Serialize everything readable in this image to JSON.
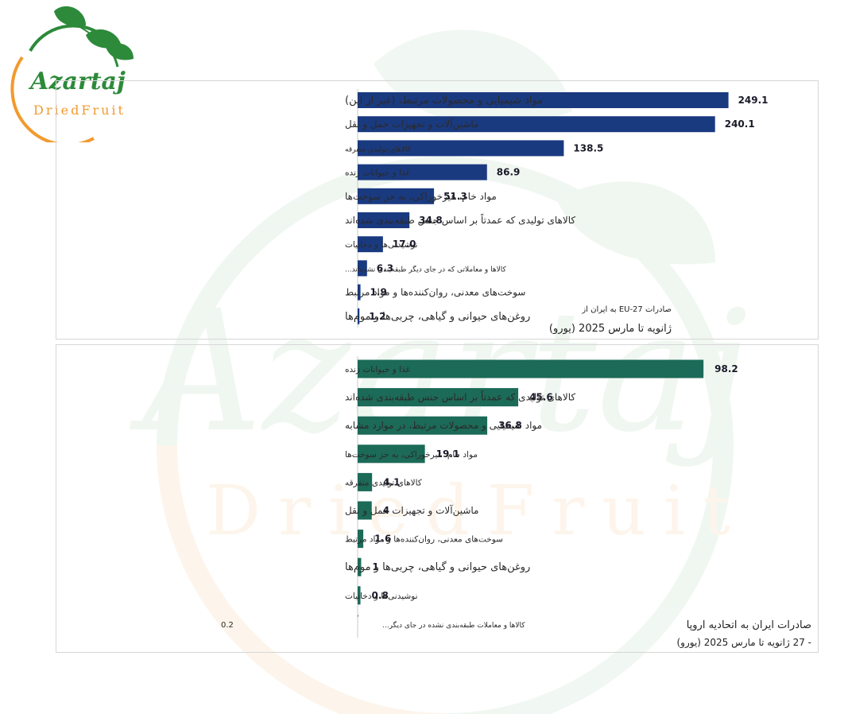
{
  "brand": {
    "name": "Azartaj",
    "sub": "DriedFruit"
  },
  "colors": {
    "chart1": "#1a3a80",
    "chart2": "#1c6a58",
    "logo_green": "#2d8a3a",
    "logo_orange": "#f29a2e"
  },
  "chart_data": [
    {
      "type": "bar",
      "orientation": "horizontal",
      "title": "صادرات EU-27 به ایران از",
      "subtitle": "ژانویه تا مارس 2025 (یورو)",
      "categories": [
        "مواد شیمیایی و محصولات مرتبط، (غیر از این)",
        "ماشین‌آلات و تجهیزات حمل و نقل",
        "کالاهای تولیدی متفرقه",
        "غذا و حیوانات زنده",
        "مواد خام، غیرخوراکی، به جز سوخت‌ها",
        "کالاهای تولیدی که عمدتاً بر اساس جنس طبقه‌بندی شده‌اند",
        "نوشیدنی‌ها و دخانیات",
        "کالاها و معاملاتی که در جای دیگر طبقه‌بندی نشده‌اند...",
        "سوخت‌های معدنی، روان‌کننده‌ها و مواد مرتبط",
        "روغن‌های حیوانی و گیاهی، چربی‌ها و موم‌ها"
      ],
      "values": [
        249.1,
        240.1,
        138.5,
        86.9,
        51.3,
        34.8,
        17.0,
        6.3,
        1.9,
        1.2
      ],
      "value_labels": [
        "249.1",
        "240.1",
        "138.5",
        "86.9",
        "51.3",
        "34.8",
        "17.0",
        "6.3",
        "1.9",
        "1.2"
      ],
      "label_sizes": [
        "large",
        "medium",
        "tiny",
        "small",
        "medium",
        "medium",
        "small",
        "tiny",
        "medium",
        "large"
      ],
      "xlim": [
        0,
        260
      ],
      "color": "#1a3a80"
    },
    {
      "type": "bar",
      "orientation": "horizontal",
      "title": "صادرات ایران به اتحادیه اروپا",
      "subtitle": "- 27 ژانویه تا مارس 2025 (یورو)",
      "categories": [
        "غذا و حیوانات زنده",
        "کالاهای تولیدی که عمدتاً بر اساس جنس طبقه‌بندی شده‌اند",
        "مواد شیمیایی و محصولات مرتبط، در موارد مشابه",
        "مواد خام، غیرخوراکی، به جز سوخت‌ها",
        "کالاهای تولیدی متفرقه",
        "ماشین‌آلات و تجهیزات حمل و نقل",
        "سوخت‌های معدنی، روان‌کننده‌ها و مواد مرتبط",
        "روغن‌های حیوانی و گیاهی، چربی‌ها و موم‌ها",
        "نوشیدنی‌ها و دخانیات",
        "کالاها و معاملات طبقه‌بندی نشده در جای دیگر..."
      ],
      "values": [
        98.2,
        45.6,
        36.8,
        19.1,
        4.1,
        4,
        1.6,
        1,
        0.8,
        0.2
      ],
      "value_labels": [
        "98.2",
        "45.6",
        "36.8",
        "19.1",
        "4.1",
        "4",
        "1.6",
        "1",
        "0.8",
        "0.2"
      ],
      "label_sizes": [
        "small",
        "medium",
        "medium",
        "small",
        "small",
        "medium",
        "small",
        "large",
        "small",
        "tiny"
      ],
      "xlim": [
        0,
        102
      ],
      "color": "#1c6a58"
    }
  ]
}
